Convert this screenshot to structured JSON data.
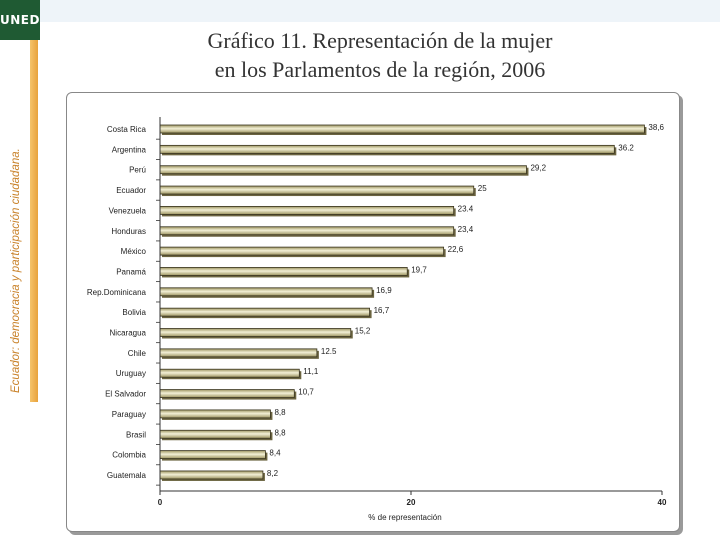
{
  "logo": {
    "text": "UNED"
  },
  "sidebar": {
    "caption": "Ecuador: democracia y participación ciudadana."
  },
  "title": {
    "line1": "Gráfico 11. Representación de la mujer",
    "line2": "en los Parlamentos de la región, 2006"
  },
  "colors": {
    "bar_light": "#f3f0d6",
    "bar_dark": "#9c9460",
    "bar_border": "#3a3520",
    "sidebar_accent": "#e8a23b",
    "logo_bg": "#1f5a33"
  },
  "chart_data": {
    "type": "bar",
    "orientation": "horizontal",
    "categories": [
      "Costa Rica",
      "Argentina",
      "Perú",
      "Ecuador",
      "Venezuela",
      "Honduras",
      "México",
      "Panamá",
      "Rep.Dominicana",
      "Bolivia",
      "Nicaragua",
      "Chile",
      "Uruguay",
      "El Salvador",
      "Paraguay",
      "Brasil",
      "Colombia",
      "Guatemala"
    ],
    "values": [
      38.6,
      36.2,
      29.2,
      25,
      23.4,
      23.4,
      22.6,
      19.7,
      16.9,
      16.7,
      15.2,
      12.5,
      11.1,
      10.7,
      8.8,
      8.8,
      8.4,
      8.2
    ],
    "value_labels": [
      "38,6",
      "36.2",
      "29,2",
      "25",
      "23.4",
      "23,4",
      "22,6",
      "19,7",
      "16,9",
      "16,7",
      "15,2",
      "12.5",
      "11,1",
      "10,7",
      "8,8",
      "8,8",
      "8,4",
      "8,2"
    ],
    "xlim": [
      0,
      40
    ],
    "xticks": [
      0,
      20,
      40
    ],
    "xtick_labels": [
      "0",
      "20",
      "40"
    ],
    "xlabel": "% de representación",
    "grid": false,
    "legend": "none"
  }
}
